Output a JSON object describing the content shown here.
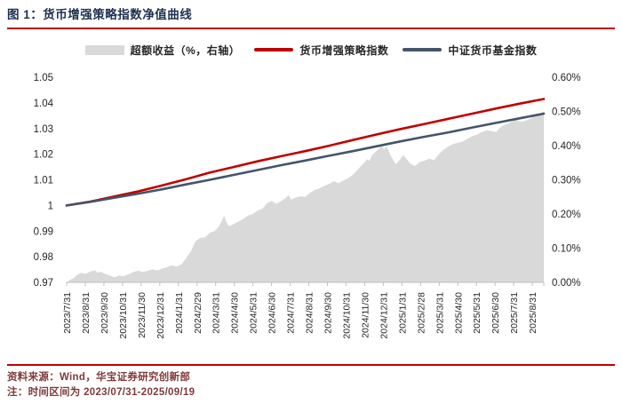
{
  "page": {
    "title": "图 1：货币增强策略指数净值曲线"
  },
  "footer": {
    "source": "资料来源：Wind，华宝证券研究创新部",
    "note": "注：时间区间为 2023/07/31-2025/09/19"
  },
  "colors": {
    "accent_red": "#c00000",
    "strategy_line": "#c00000",
    "benchmark_line": "#44546a",
    "excess_area": "#d9d9d9",
    "axis_line": "#bfbfbf",
    "tick_text": "#262626",
    "title_text": "#1e3050",
    "footer_text": "#7e3a3a"
  },
  "chart_data": {
    "type": "area+line combo",
    "title": "货币增强策略指数净值曲线",
    "grid": false,
    "legend_position": "top",
    "legend": [
      "超额收益（%，右轴）",
      "货币增强策略指数",
      "中证货币基金指数"
    ],
    "left_axis": {
      "range": [
        0.97,
        1.05
      ],
      "ticks": [
        1.05,
        1.04,
        1.03,
        1.02,
        1.01,
        1,
        0.99,
        0.98,
        0.97
      ],
      "tick_labels": [
        "1.05",
        "1.04",
        "1.03",
        "1.02",
        "1.01",
        "1",
        "0.99",
        "0.98",
        "0.97"
      ]
    },
    "right_axis": {
      "range": [
        0,
        0.6
      ],
      "ticks": [
        0.6,
        0.5,
        0.4,
        0.3,
        0.2,
        0.1,
        0
      ],
      "tick_labels": [
        "0.60%",
        "0.50%",
        "0.40%",
        "0.30%",
        "0.20%",
        "0.10%",
        "0.00%"
      ]
    },
    "x_labels": [
      "2023/7/31",
      "2023/8/31",
      "2023/9/30",
      "2023/10/31",
      "2023/11/30",
      "2023/12/31",
      "2024/1/31",
      "2024/2/29",
      "2024/3/31",
      "2024/4/30",
      "2024/5/31",
      "2024/6/30",
      "2024/7/31",
      "2024/8/31",
      "2024/9/30",
      "2024/10/31",
      "2024/11/30",
      "2024/12/31",
      "2025/1/31",
      "2025/2/28",
      "2025/3/31",
      "2025/4/30",
      "2025/5/31",
      "2025/6/30",
      "2025/7/31",
      "2025/8/31"
    ],
    "x_label_span_fraction": 0.976,
    "x_range_note": "t=0 is 2023/7/31, t=1 is 2025/9/19",
    "series": [
      {
        "name": "超额收益（%，右轴）",
        "type": "area",
        "axis": "right",
        "color": "#d9d9d9",
        "points": [
          [
            0,
            0
          ],
          [
            0.008,
            0.008
          ],
          [
            0.015,
            0.012
          ],
          [
            0.02,
            0.02
          ],
          [
            0.03,
            0.028
          ],
          [
            0.04,
            0.025
          ],
          [
            0.05,
            0.032
          ],
          [
            0.06,
            0.035
          ],
          [
            0.065,
            0.028
          ],
          [
            0.07,
            0.032
          ],
          [
            0.08,
            0.025
          ],
          [
            0.09,
            0.02
          ],
          [
            0.1,
            0.015
          ],
          [
            0.11,
            0.02
          ],
          [
            0.12,
            0.018
          ],
          [
            0.13,
            0.024
          ],
          [
            0.14,
            0.03
          ],
          [
            0.15,
            0.034
          ],
          [
            0.16,
            0.03
          ],
          [
            0.17,
            0.034
          ],
          [
            0.18,
            0.038
          ],
          [
            0.19,
            0.035
          ],
          [
            0.2,
            0.04
          ],
          [
            0.21,
            0.044
          ],
          [
            0.22,
            0.05
          ],
          [
            0.23,
            0.046
          ],
          [
            0.24,
            0.052
          ],
          [
            0.25,
            0.07
          ],
          [
            0.26,
            0.09
          ],
          [
            0.27,
            0.12
          ],
          [
            0.28,
            0.13
          ],
          [
            0.29,
            0.132
          ],
          [
            0.3,
            0.145
          ],
          [
            0.31,
            0.15
          ],
          [
            0.32,
            0.165
          ],
          [
            0.33,
            0.195
          ],
          [
            0.335,
            0.175
          ],
          [
            0.34,
            0.165
          ],
          [
            0.35,
            0.17
          ],
          [
            0.36,
            0.178
          ],
          [
            0.37,
            0.185
          ],
          [
            0.38,
            0.195
          ],
          [
            0.39,
            0.2
          ],
          [
            0.4,
            0.21
          ],
          [
            0.41,
            0.215
          ],
          [
            0.42,
            0.232
          ],
          [
            0.43,
            0.238
          ],
          [
            0.44,
            0.23
          ],
          [
            0.45,
            0.238
          ],
          [
            0.46,
            0.248
          ],
          [
            0.465,
            0.256
          ],
          [
            0.47,
            0.242
          ],
          [
            0.48,
            0.248
          ],
          [
            0.49,
            0.252
          ],
          [
            0.5,
            0.25
          ],
          [
            0.51,
            0.262
          ],
          [
            0.52,
            0.27
          ],
          [
            0.53,
            0.275
          ],
          [
            0.54,
            0.282
          ],
          [
            0.55,
            0.288
          ],
          [
            0.56,
            0.296
          ],
          [
            0.57,
            0.29
          ],
          [
            0.58,
            0.298
          ],
          [
            0.59,
            0.305
          ],
          [
            0.6,
            0.315
          ],
          [
            0.61,
            0.33
          ],
          [
            0.62,
            0.345
          ],
          [
            0.63,
            0.36
          ],
          [
            0.635,
            0.355
          ],
          [
            0.64,
            0.372
          ],
          [
            0.65,
            0.385
          ],
          [
            0.66,
            0.398
          ],
          [
            0.665,
            0.388
          ],
          [
            0.67,
            0.398
          ],
          [
            0.68,
            0.368
          ],
          [
            0.69,
            0.345
          ],
          [
            0.7,
            0.362
          ],
          [
            0.705,
            0.372
          ],
          [
            0.71,
            0.365
          ],
          [
            0.72,
            0.348
          ],
          [
            0.73,
            0.34
          ],
          [
            0.74,
            0.352
          ],
          [
            0.75,
            0.356
          ],
          [
            0.76,
            0.362
          ],
          [
            0.77,
            0.358
          ],
          [
            0.78,
            0.375
          ],
          [
            0.79,
            0.388
          ],
          [
            0.8,
            0.398
          ],
          [
            0.81,
            0.405
          ],
          [
            0.82,
            0.408
          ],
          [
            0.83,
            0.412
          ],
          [
            0.84,
            0.42
          ],
          [
            0.85,
            0.428
          ],
          [
            0.86,
            0.432
          ],
          [
            0.87,
            0.44
          ],
          [
            0.88,
            0.445
          ],
          [
            0.89,
            0.442
          ],
          [
            0.9,
            0.44
          ],
          [
            0.91,
            0.455
          ],
          [
            0.92,
            0.462
          ],
          [
            0.93,
            0.468
          ],
          [
            0.94,
            0.475
          ],
          [
            0.95,
            0.47
          ],
          [
            0.96,
            0.472
          ],
          [
            0.97,
            0.478
          ],
          [
            0.98,
            0.486
          ],
          [
            0.99,
            0.492
          ],
          [
            1,
            0.5
          ]
        ]
      },
      {
        "name": "货币增强策略指数",
        "type": "line",
        "axis": "left",
        "color": "#c00000",
        "width": 2.6,
        "points": [
          [
            0,
            1.0
          ],
          [
            0.05,
            1.0015
          ],
          [
            0.1,
            1.0035
          ],
          [
            0.15,
            1.0055
          ],
          [
            0.2,
            1.0078
          ],
          [
            0.25,
            1.0102
          ],
          [
            0.3,
            1.0128
          ],
          [
            0.35,
            1.015
          ],
          [
            0.4,
            1.0172
          ],
          [
            0.45,
            1.0192
          ],
          [
            0.5,
            1.0212
          ],
          [
            0.55,
            1.0233
          ],
          [
            0.6,
            1.0255
          ],
          [
            0.65,
            1.0277
          ],
          [
            0.7,
            1.0298
          ],
          [
            0.75,
            1.0318
          ],
          [
            0.8,
            1.0338
          ],
          [
            0.85,
            1.0358
          ],
          [
            0.9,
            1.0378
          ],
          [
            0.95,
            1.0397
          ],
          [
            1,
            1.0415
          ]
        ]
      },
      {
        "name": "中证货币基金指数",
        "type": "line",
        "axis": "left",
        "color": "#44546a",
        "width": 2.6,
        "points": [
          [
            0,
            1.0
          ],
          [
            0.05,
            1.0014
          ],
          [
            0.1,
            1.003
          ],
          [
            0.15,
            1.0046
          ],
          [
            0.2,
            1.0063
          ],
          [
            0.25,
            1.0082
          ],
          [
            0.3,
            1.01
          ],
          [
            0.35,
            1.0119
          ],
          [
            0.4,
            1.0138
          ],
          [
            0.45,
            1.0157
          ],
          [
            0.5,
            1.0175
          ],
          [
            0.55,
            1.0194
          ],
          [
            0.6,
            1.0212
          ],
          [
            0.65,
            1.0231
          ],
          [
            0.7,
            1.025
          ],
          [
            0.75,
            1.0268
          ],
          [
            0.8,
            1.0285
          ],
          [
            0.85,
            1.0304
          ],
          [
            0.9,
            1.0322
          ],
          [
            0.95,
            1.034
          ],
          [
            1,
            1.0358
          ]
        ]
      }
    ]
  }
}
